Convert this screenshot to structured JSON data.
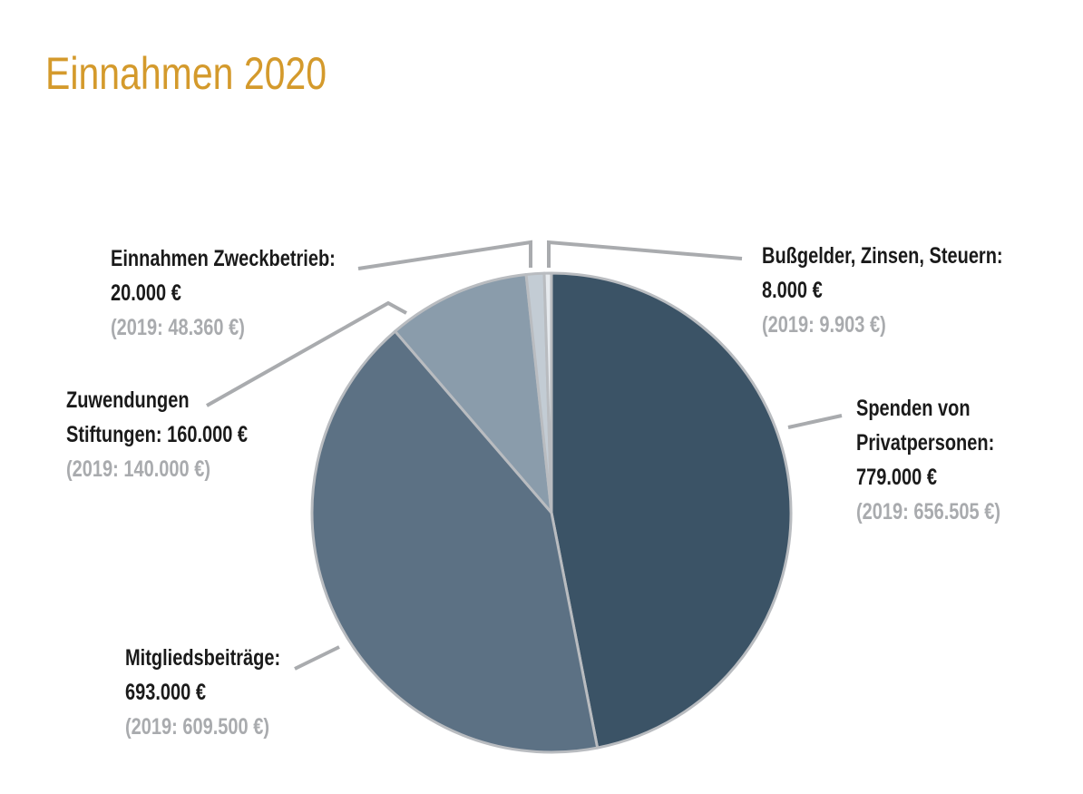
{
  "title": "Einnahmen 2020",
  "colors": {
    "title": "#d49a2c",
    "slice_border": "#b9bcc0",
    "leader": "#a9abae",
    "previous_year_text": "#a9abae"
  },
  "chart_data": {
    "type": "pie",
    "title": "Einnahmen 2020",
    "currency": "€",
    "slices": [
      {
        "id": "spenden",
        "label_lines": [
          "Spenden von",
          "Privatpersonen:",
          "779.000 €"
        ],
        "value": 779000,
        "previous_year_text": "(2019: 656.505 €)",
        "previous_year_value": 656505,
        "color": "#3b5366"
      },
      {
        "id": "mitgliedsbeitraege",
        "label_lines": [
          "Mitgliedsbeiträge:",
          "693.000 €"
        ],
        "value": 693000,
        "previous_year_text": "(2019: 609.500 €)",
        "previous_year_value": 609500,
        "color": "#5c7184"
      },
      {
        "id": "stiftungen",
        "label_lines": [
          "Zuwendungen",
          "Stiftungen: 160.000 €"
        ],
        "value": 160000,
        "previous_year_text": "(2019: 140.000 €)",
        "previous_year_value": 140000,
        "color": "#8a9cab"
      },
      {
        "id": "zweckbetrieb",
        "label_lines": [
          "Einnahmen Zweckbetrieb:",
          "20.000 €"
        ],
        "value": 20000,
        "previous_year_text": "(2019: 48.360 €)",
        "previous_year_value": 48360,
        "color": "#c3ccd4"
      },
      {
        "id": "bussgelder",
        "label_lines": [
          "Bußgelder, Zinsen, Steuern:",
          "8.000 €"
        ],
        "value": 8000,
        "previous_year_text": "(2019: 9.903 €)",
        "previous_year_value": 9903,
        "color": "#e6eaee"
      }
    ]
  }
}
